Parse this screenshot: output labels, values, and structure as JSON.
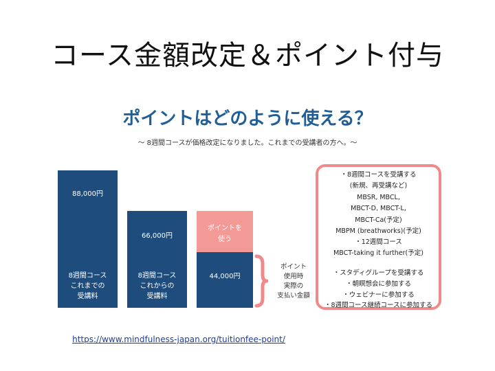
{
  "slide_title": "コース金額改定＆ポイント付与",
  "heading": "ポイントはどのように使える？",
  "subtitle": "〜 8週間コースが価格改定になりました。これまでの受講者の方へ。〜",
  "bars": [
    {
      "price": "88,000円",
      "label_lines": [
        "8週間コース",
        "これまでの",
        "受講料"
      ]
    },
    {
      "price": "66,000円",
      "label_lines": [
        "8週間コース",
        "これからの",
        "受講料"
      ]
    },
    {
      "price": "44,000円",
      "points_lines": [
        "ポイントを",
        "使う"
      ]
    }
  ],
  "brace_note_lines": [
    "ポイント",
    "使用時",
    "実際の",
    "支払い金額"
  ],
  "info_box_lines": [
    "・8週間コースを受講する",
    "(新規、再受講など)",
    "MBSR, MBCL,",
    "MBCT-D, MBCT-L,",
    "MBCT-Ca(予定)",
    "MBPM (breathworks)(予定)",
    "・12週間コース",
    "MBCT-taking it further(予定)",
    "",
    "・スタディグループを受講する",
    "・朝瞑想会に参加する",
    "・ウェビナーに参加する",
    "・8週間コース継続コースに参加する"
  ],
  "url": "https://www.mindfulness-japan.org/tuitionfee-point/",
  "colors": {
    "bar": "#1d4c7d",
    "points": "#f49a96",
    "accent": "#f08a8a",
    "heading": "#1f5e96"
  }
}
